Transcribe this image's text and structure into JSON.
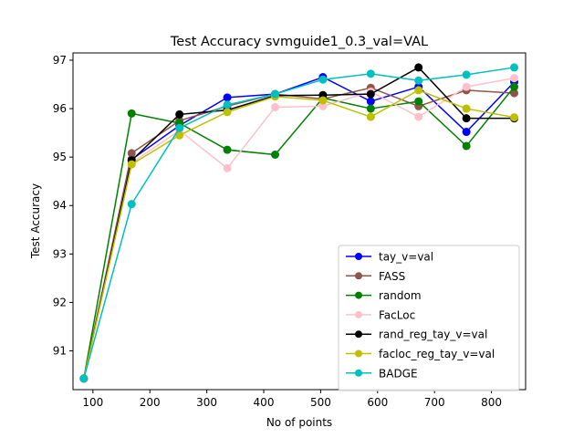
{
  "chart_data": {
    "type": "line",
    "title": "Test Accuracy svmguide1_0.3_val=VAL",
    "xlabel": "No of points",
    "ylabel": "Test Accuracy",
    "xlim": [
      65,
      860
    ],
    "ylim": [
      90.2,
      97.15
    ],
    "xticks": [
      100,
      200,
      300,
      400,
      500,
      600,
      700,
      800
    ],
    "yticks": [
      91,
      92,
      93,
      94,
      95,
      96,
      97
    ],
    "grid": false,
    "legend_position": "lower-right",
    "x": [
      84,
      168,
      252,
      336,
      420,
      504,
      588,
      672,
      756,
      840
    ],
    "series": [
      {
        "name": "tay_v=val",
        "color": "#0000ff",
        "values": [
          90.43,
          94.95,
          95.65,
          96.23,
          96.3,
          96.65,
          96.15,
          96.45,
          95.52,
          96.55
        ]
      },
      {
        "name": "FASS",
        "color": "#8c564b",
        "values": [
          90.43,
          95.08,
          95.75,
          96.05,
          96.3,
          96.2,
          96.43,
          96.05,
          96.38,
          96.32
        ]
      },
      {
        "name": "random",
        "color": "#008000",
        "values": [
          90.43,
          95.9,
          95.7,
          95.15,
          95.05,
          96.22,
          96.0,
          96.15,
          95.23,
          96.45
        ]
      },
      {
        "name": "FacLoc",
        "color": "#ffc0cb",
        "values": [
          90.43,
          94.88,
          95.55,
          94.77,
          96.03,
          96.05,
          96.35,
          95.83,
          96.45,
          96.63
        ]
      },
      {
        "name": "rand_reg_tay_v=val",
        "color": "#000000",
        "values": [
          90.43,
          94.93,
          95.88,
          95.97,
          96.27,
          96.28,
          96.3,
          96.85,
          95.8,
          95.8
        ]
      },
      {
        "name": "facloc_reg_tay_v=val",
        "color": "#bfbf00",
        "values": [
          90.43,
          94.85,
          95.45,
          95.93,
          96.25,
          96.17,
          95.83,
          96.38,
          96.0,
          95.82
        ]
      },
      {
        "name": "BADGE",
        "color": "#00bfbf",
        "values": [
          90.43,
          94.03,
          95.6,
          96.08,
          96.3,
          96.6,
          96.72,
          96.58,
          96.7,
          96.85
        ]
      }
    ]
  }
}
